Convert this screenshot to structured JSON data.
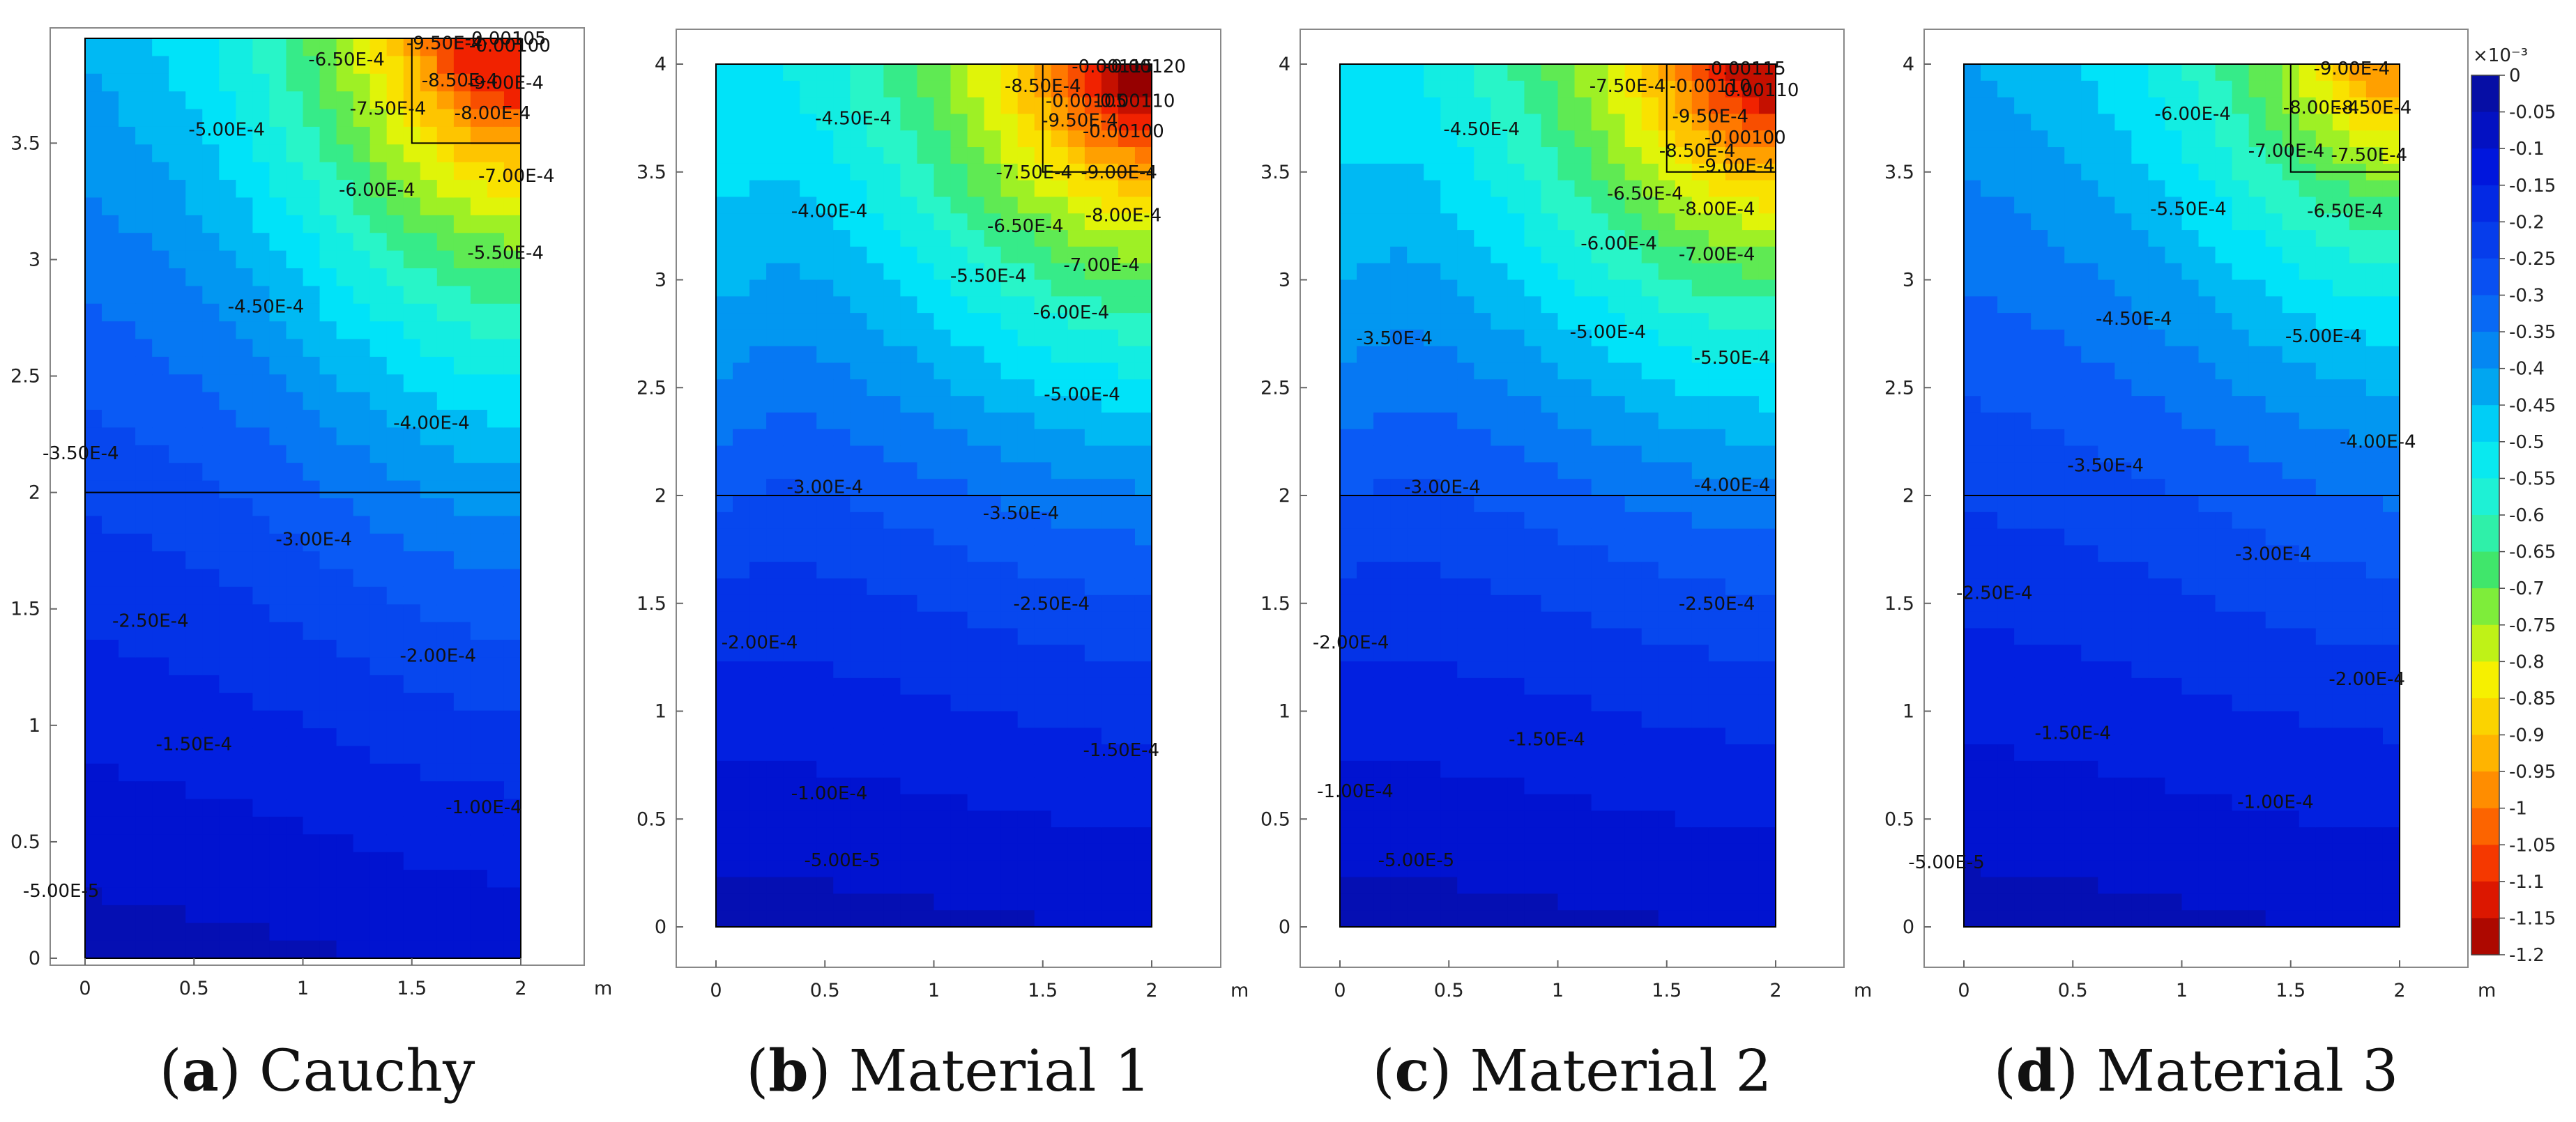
{
  "chart_data": {
    "type": "contour",
    "x_unit": "m",
    "x_ticks": [
      "0",
      "0.5",
      "1",
      "1.5",
      "2"
    ],
    "y_ticks_panel_a": [
      "0",
      "0.5",
      "1",
      "1.5",
      "2",
      "2.5",
      "3",
      "3.5"
    ],
    "y_ticks": [
      "0",
      "0.5",
      "1",
      "1.5",
      "2",
      "2.5",
      "3",
      "3.5",
      "4"
    ],
    "xlim": [
      0,
      2
    ],
    "ylim": [
      0,
      4
    ],
    "layer_interface_y": 2.0,
    "loaded_zone": {
      "x": [
        1.5,
        2.0
      ],
      "y": [
        3.5,
        4.0
      ]
    },
    "colorbar": {
      "multiplier": "×10⁻³",
      "min": -1.2,
      "max": 0,
      "ticks": [
        "0",
        "-0.05",
        "-0.1",
        "-0.15",
        "-0.2",
        "-0.25",
        "-0.3",
        "-0.35",
        "-0.4",
        "-0.45",
        "-0.5",
        "-0.55",
        "-0.6",
        "-0.65",
        "-0.7",
        "-0.75",
        "-0.8",
        "-0.85",
        "-0.9",
        "-0.95",
        "-1",
        "-1.05",
        "-1.1",
        "-1.15",
        "-1.2"
      ]
    },
    "panels": [
      {
        "letter": "a",
        "name": ") Cauchy",
        "labels": [
          {
            "text": "-0.00105",
            "x": 1.93,
            "y": 3.98,
            "v": -1.05
          },
          {
            "text": "-6.50E-4",
            "x": 1.2,
            "y": 3.86,
            "v": -0.65
          },
          {
            "text": "-9.50E-4",
            "x": 1.65,
            "y": 3.93,
            "v": -0.95
          },
          {
            "text": "-0.00100",
            "x": 1.95,
            "y": 3.92,
            "v": -1.0
          },
          {
            "text": "-8.50E-4",
            "x": 1.72,
            "y": 3.77,
            "v": -0.85
          },
          {
            "text": "-9.00E-4",
            "x": 1.93,
            "y": 3.76,
            "v": -0.9
          },
          {
            "text": "-7.50E-4",
            "x": 1.39,
            "y": 3.65,
            "v": -0.75
          },
          {
            "text": "-8.00E-4",
            "x": 1.87,
            "y": 3.63,
            "v": -0.8
          },
          {
            "text": "-5.00E-4",
            "x": 0.65,
            "y": 3.56,
            "v": -0.5
          },
          {
            "text": "-7.00E-4",
            "x": 1.98,
            "y": 3.36,
            "v": -0.7
          },
          {
            "text": "-6.00E-4",
            "x": 1.34,
            "y": 3.3,
            "v": -0.6
          },
          {
            "text": "-5.50E-4",
            "x": 1.93,
            "y": 3.03,
            "v": -0.55
          },
          {
            "text": "-4.50E-4",
            "x": 0.83,
            "y": 2.8,
            "v": -0.45
          },
          {
            "text": "-4.00E-4",
            "x": 1.59,
            "y": 2.3,
            "v": -0.4
          },
          {
            "text": "-3.50E-4",
            "x": -0.02,
            "y": 2.17,
            "v": -0.35
          },
          {
            "text": "-3.00E-4",
            "x": 1.05,
            "y": 1.8,
            "v": -0.3
          },
          {
            "text": "-2.50E-4",
            "x": 0.3,
            "y": 1.45,
            "v": -0.25
          },
          {
            "text": "-2.00E-4",
            "x": 1.62,
            "y": 1.3,
            "v": -0.2
          },
          {
            "text": "-1.50E-4",
            "x": 0.5,
            "y": 0.92,
            "v": -0.15
          },
          {
            "text": "-1.00E-4",
            "x": 1.83,
            "y": 0.65,
            "v": -0.1
          },
          {
            "text": "-5.00E-5",
            "x": -0.11,
            "y": 0.29,
            "v": -0.05
          }
        ]
      },
      {
        "letter": "b",
        "name": ") Material 1",
        "labels": [
          {
            "text": "-0.00115",
            "x": 1.82,
            "y": 3.99,
            "v": -1.15
          },
          {
            "text": "-0.00120",
            "x": 1.97,
            "y": 3.99,
            "v": -1.2
          },
          {
            "text": "-8.50E-4",
            "x": 1.5,
            "y": 3.9,
            "v": -0.85
          },
          {
            "text": "-0.00105",
            "x": 1.7,
            "y": 3.83,
            "v": -1.05
          },
          {
            "text": "-0.00110",
            "x": 1.92,
            "y": 3.83,
            "v": -1.1
          },
          {
            "text": "-4.50E-4",
            "x": 0.63,
            "y": 3.75,
            "v": -0.45
          },
          {
            "text": "-9.50E-4",
            "x": 1.67,
            "y": 3.74,
            "v": -0.95
          },
          {
            "text": "-0.00100",
            "x": 1.87,
            "y": 3.69,
            "v": -1.0
          },
          {
            "text": "-7.50E-4",
            "x": 1.46,
            "y": 3.5,
            "v": -0.75
          },
          {
            "text": "-9.00E-4",
            "x": 1.85,
            "y": 3.5,
            "v": -0.9
          },
          {
            "text": "-4.00E-4",
            "x": 0.52,
            "y": 3.32,
            "v": -0.4
          },
          {
            "text": "-6.50E-4",
            "x": 1.42,
            "y": 3.25,
            "v": -0.65
          },
          {
            "text": "-8.00E-4",
            "x": 1.87,
            "y": 3.3,
            "v": -0.8
          },
          {
            "text": "-7.00E-4",
            "x": 1.77,
            "y": 3.07,
            "v": -0.7
          },
          {
            "text": "-5.50E-4",
            "x": 1.25,
            "y": 3.02,
            "v": -0.55
          },
          {
            "text": "-6.00E-4",
            "x": 1.63,
            "y": 2.85,
            "v": -0.6
          },
          {
            "text": "-5.00E-4",
            "x": 1.68,
            "y": 2.47,
            "v": -0.5
          },
          {
            "text": "-3.00E-4",
            "x": 0.5,
            "y": 2.04,
            "v": -0.3
          },
          {
            "text": "-3.50E-4",
            "x": 1.4,
            "y": 1.92,
            "v": -0.35
          },
          {
            "text": "-2.50E-4",
            "x": 1.54,
            "y": 1.5,
            "v": -0.25
          },
          {
            "text": "-2.00E-4",
            "x": 0.2,
            "y": 1.32,
            "v": -0.2
          },
          {
            "text": "-1.50E-4",
            "x": 1.86,
            "y": 0.82,
            "v": -0.15
          },
          {
            "text": "-1.00E-4",
            "x": 0.52,
            "y": 0.62,
            "v": -0.1
          },
          {
            "text": "-5.00E-5",
            "x": 0.58,
            "y": 0.31,
            "v": -0.05
          }
        ]
      },
      {
        "letter": "c",
        "name": ") Material 2",
        "labels": [
          {
            "text": "-0.00115",
            "x": 1.86,
            "y": 3.98,
            "v": -1.15
          },
          {
            "text": "-7.50E-4",
            "x": 1.32,
            "y": 3.9,
            "v": -0.75
          },
          {
            "text": "-0.00110",
            "x": 1.7,
            "y": 3.9,
            "v": -1.1
          },
          {
            "text": "-0.00110",
            "x": 1.92,
            "y": 3.88,
            "v": -1.1
          },
          {
            "text": "-4.50E-4",
            "x": 0.65,
            "y": 3.7,
            "v": -0.45
          },
          {
            "text": "-9.50E-4",
            "x": 1.7,
            "y": 3.76,
            "v": -0.95
          },
          {
            "text": "-0.00100",
            "x": 1.86,
            "y": 3.66,
            "v": -1.0
          },
          {
            "text": "-8.50E-4",
            "x": 1.64,
            "y": 3.6,
            "v": -0.85
          },
          {
            "text": "-9.00E-4",
            "x": 1.82,
            "y": 3.53,
            "v": -0.9
          },
          {
            "text": "-6.50E-4",
            "x": 1.4,
            "y": 3.4,
            "v": -0.65
          },
          {
            "text": "-8.00E-4",
            "x": 1.73,
            "y": 3.33,
            "v": -0.8
          },
          {
            "text": "-6.00E-4",
            "x": 1.28,
            "y": 3.17,
            "v": -0.6
          },
          {
            "text": "-7.00E-4",
            "x": 1.73,
            "y": 3.12,
            "v": -0.7
          },
          {
            "text": "-5.00E-4",
            "x": 1.23,
            "y": 2.76,
            "v": -0.5
          },
          {
            "text": "-5.50E-4",
            "x": 1.8,
            "y": 2.64,
            "v": -0.55
          },
          {
            "text": "-3.50E-4",
            "x": 0.25,
            "y": 2.73,
            "v": -0.35
          },
          {
            "text": "-3.00E-4",
            "x": 0.47,
            "y": 2.04,
            "v": -0.3
          },
          {
            "text": "-4.00E-4",
            "x": 1.8,
            "y": 2.05,
            "v": -0.4
          },
          {
            "text": "-2.50E-4",
            "x": 1.73,
            "y": 1.5,
            "v": -0.25
          },
          {
            "text": "-2.00E-4",
            "x": 0.05,
            "y": 1.32,
            "v": -0.2
          },
          {
            "text": "-1.50E-4",
            "x": 0.95,
            "y": 0.87,
            "v": -0.15
          },
          {
            "text": "-1.00E-4",
            "x": 0.07,
            "y": 0.63,
            "v": -0.1
          },
          {
            "text": "-5.00E-5",
            "x": 0.35,
            "y": 0.31,
            "v": -0.05
          }
        ]
      },
      {
        "letter": "d",
        "name": ") Material 3",
        "labels": [
          {
            "text": "-9.00E-4",
            "x": 1.78,
            "y": 3.98,
            "v": -0.9
          },
          {
            "text": "-6.00E-4",
            "x": 1.05,
            "y": 3.77,
            "v": -0.6
          },
          {
            "text": "-8.00E-4",
            "x": 1.64,
            "y": 3.8,
            "v": -0.8
          },
          {
            "text": "-8.50E-4",
            "x": 1.88,
            "y": 3.8,
            "v": -0.85
          },
          {
            "text": "-7.00E-4",
            "x": 1.48,
            "y": 3.6,
            "v": -0.7
          },
          {
            "text": "-7.50E-4",
            "x": 1.86,
            "y": 3.58,
            "v": -0.75
          },
          {
            "text": "-5.50E-4",
            "x": 1.03,
            "y": 3.33,
            "v": -0.55
          },
          {
            "text": "-6.50E-4",
            "x": 1.75,
            "y": 3.32,
            "v": -0.65
          },
          {
            "text": "-4.50E-4",
            "x": 0.78,
            "y": 2.82,
            "v": -0.45
          },
          {
            "text": "-5.00E-4",
            "x": 1.65,
            "y": 2.74,
            "v": -0.5
          },
          {
            "text": "-4.00E-4",
            "x": 1.9,
            "y": 2.25,
            "v": -0.4
          },
          {
            "text": "-3.50E-4",
            "x": 0.65,
            "y": 2.14,
            "v": -0.35
          },
          {
            "text": "-3.00E-4",
            "x": 1.42,
            "y": 1.73,
            "v": -0.3
          },
          {
            "text": "-2.50E-4",
            "x": 0.14,
            "y": 1.55,
            "v": -0.25
          },
          {
            "text": "-2.00E-4",
            "x": 1.85,
            "y": 1.15,
            "v": -0.2
          },
          {
            "text": "-1.50E-4",
            "x": 0.5,
            "y": 0.9,
            "v": -0.15
          },
          {
            "text": "-1.00E-4",
            "x": 1.43,
            "y": 0.58,
            "v": -0.1
          },
          {
            "text": "-5.00E-5",
            "x": -0.08,
            "y": 0.3,
            "v": -0.05
          }
        ]
      }
    ]
  }
}
